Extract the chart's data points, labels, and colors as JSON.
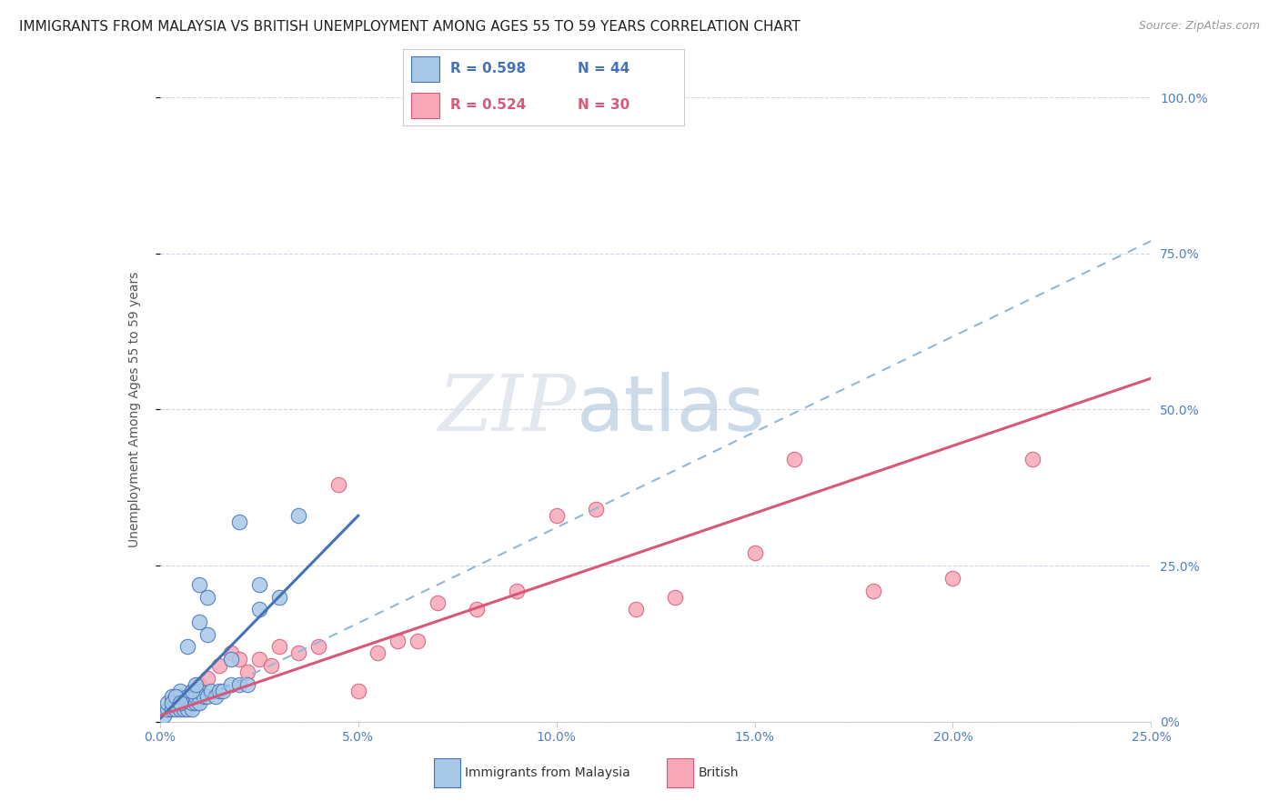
{
  "title": "IMMIGRANTS FROM MALAYSIA VS BRITISH UNEMPLOYMENT AMONG AGES 55 TO 59 YEARS CORRELATION CHART",
  "source": "Source: ZipAtlas.com",
  "ylabel": "Unemployment Among Ages 55 to 59 years",
  "xmin": 0.0,
  "xmax": 0.25,
  "ymin": 0.0,
  "ymax": 1.0,
  "xticks": [
    0.0,
    0.05,
    0.1,
    0.15,
    0.2,
    0.25
  ],
  "xtick_labels": [
    "0.0%",
    "5.0%",
    "10.0%",
    "15.0%",
    "20.0%",
    "25.0%"
  ],
  "yticks": [
    0.0,
    0.25,
    0.5,
    0.75,
    1.0
  ],
  "ytick_labels": [
    "0%",
    "25.0%",
    "50.0%",
    "75.0%",
    "100.0%"
  ],
  "legend_blue_r": "R = 0.598",
  "legend_blue_n": "N = 44",
  "legend_pink_r": "R = 0.524",
  "legend_pink_n": "N = 30",
  "legend_label_blue": "Immigrants from Malaysia",
  "legend_label_pink": "British",
  "watermark_zip": "ZIP",
  "watermark_atlas": "atlas",
  "blue_color": "#a8c8e8",
  "blue_line_color": "#4472b8",
  "blue_dashed_color": "#90b8d8",
  "pink_color": "#f8a8b8",
  "pink_line_color": "#d85878",
  "blue_scatter_x": [
    0.001,
    0.002,
    0.002,
    0.003,
    0.003,
    0.004,
    0.004,
    0.005,
    0.005,
    0.006,
    0.006,
    0.007,
    0.007,
    0.008,
    0.008,
    0.009,
    0.009,
    0.01,
    0.01,
    0.011,
    0.012,
    0.013,
    0.014,
    0.015,
    0.016,
    0.018,
    0.02,
    0.022,
    0.025,
    0.008,
    0.009,
    0.01,
    0.012,
    0.02,
    0.025,
    0.03,
    0.035,
    0.003,
    0.004,
    0.005,
    0.007,
    0.01,
    0.012,
    0.018
  ],
  "blue_scatter_y": [
    0.01,
    0.02,
    0.03,
    0.02,
    0.04,
    0.02,
    0.03,
    0.02,
    0.05,
    0.02,
    0.03,
    0.02,
    0.04,
    0.02,
    0.03,
    0.03,
    0.04,
    0.03,
    0.05,
    0.04,
    0.04,
    0.05,
    0.04,
    0.05,
    0.05,
    0.06,
    0.06,
    0.06,
    0.22,
    0.05,
    0.06,
    0.22,
    0.2,
    0.32,
    0.18,
    0.2,
    0.33,
    0.03,
    0.04,
    0.03,
    0.12,
    0.16,
    0.14,
    0.1
  ],
  "pink_scatter_x": [
    0.005,
    0.008,
    0.01,
    0.012,
    0.015,
    0.018,
    0.02,
    0.022,
    0.025,
    0.028,
    0.03,
    0.035,
    0.04,
    0.045,
    0.05,
    0.055,
    0.06,
    0.065,
    0.07,
    0.08,
    0.09,
    0.1,
    0.11,
    0.12,
    0.13,
    0.15,
    0.16,
    0.18,
    0.2,
    0.22
  ],
  "pink_scatter_y": [
    0.04,
    0.05,
    0.06,
    0.07,
    0.09,
    0.11,
    0.1,
    0.08,
    0.1,
    0.09,
    0.12,
    0.11,
    0.12,
    0.38,
    0.05,
    0.11,
    0.13,
    0.13,
    0.19,
    0.18,
    0.21,
    0.33,
    0.34,
    0.18,
    0.2,
    0.27,
    0.42,
    0.21,
    0.23,
    0.42
  ],
  "blue_solid_line_x": [
    0.0,
    0.05
  ],
  "blue_solid_line_y": [
    0.005,
    0.33
  ],
  "blue_dashed_line_x": [
    0.0,
    0.25
  ],
  "blue_dashed_line_y": [
    0.005,
    0.77
  ],
  "pink_line_x": [
    0.0,
    0.25
  ],
  "pink_line_y": [
    0.01,
    0.55
  ],
  "background_color": "#ffffff",
  "grid_color": "#d0d8e8",
  "title_color": "#222222",
  "axis_color": "#5080c0",
  "title_fontsize": 11,
  "label_fontsize": 10,
  "tick_fontsize": 10
}
